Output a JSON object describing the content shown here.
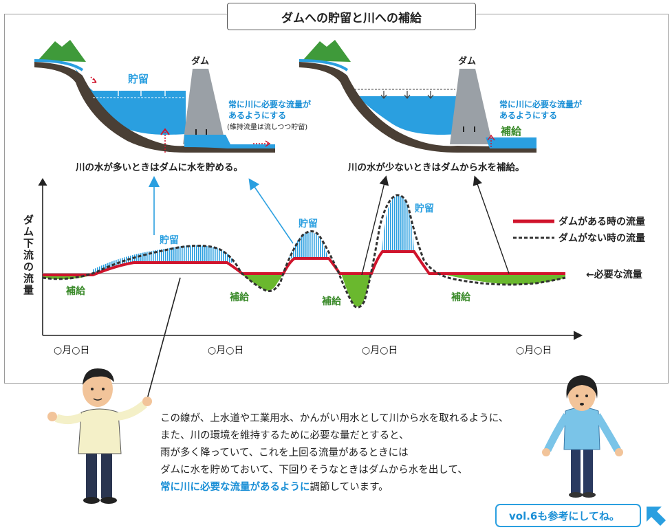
{
  "title": "ダムへの貯留と川への補給",
  "left_scene": {
    "dam_label": "ダム",
    "storage_label": "貯留",
    "note_line1": "常に川に必要な流量が",
    "note_line2": "あるようにする",
    "note_sub": "(維持流量は流しつつ貯留)",
    "caption": "川の水が多いときはダムに水を貯める。"
  },
  "right_scene": {
    "dam_label": "ダム",
    "note_line1": "常に川に必要な流量が",
    "note_line2": "あるようにする",
    "supply_label": "補給",
    "caption": "川の水が少ないときはダムから水を補給。"
  },
  "chart_data": {
    "type": "line",
    "ylabel": "ダム下流の流量",
    "x_ticks": [
      "○月○日",
      "○月○日",
      "○月○日",
      "○月○日"
    ],
    "legend": [
      {
        "name": "ダムがある時の流量",
        "style": "solid",
        "color": "#d0142c"
      },
      {
        "name": "ダムがない時の流量",
        "style": "dashed",
        "color": "#333333"
      }
    ],
    "required_flow_label": "←必要な流量",
    "annotations": {
      "storage": [
        "貯留",
        "貯留",
        "貯留"
      ],
      "supply": [
        "補給",
        "補給",
        "補給",
        "補給"
      ]
    },
    "colors": {
      "storage": "#2a9fe0",
      "supply": "#6ab82e",
      "required_line": "#aaaaaa"
    }
  },
  "narration": {
    "line1": "この線が、上水道や工業用水、かんがい用水として川から水を取れるように、",
    "line2": "また、川の環境を維持するために必要な量だとすると、",
    "line3": "雨が多く降っていて、これを上回る流量があるときには",
    "line4": "ダムに水を貯めておいて、下回りそうなときはダムから水を出して、",
    "line5_highlight": "常に川に必要な流量があるように",
    "line5_rest": "調節しています。"
  },
  "reference_button": "vol.6も参考にしてね。"
}
